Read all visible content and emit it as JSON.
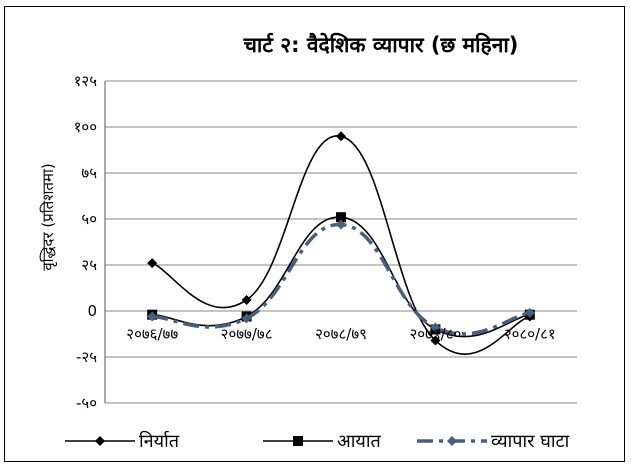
{
  "chart_data": {
    "type": "line",
    "title": "चार्ट २: वैदेशिक व्यापार (छ महिना)",
    "ylabel": "वृद्धिदर (प्रतिशतमा)",
    "xlabel": "",
    "categories": [
      "२०७६/७७",
      "२०७७/७८",
      "२०७८/७९",
      "२०७९/८०",
      "२०८०/८१"
    ],
    "y_ticks": [
      {
        "value": 125,
        "label": "१२५"
      },
      {
        "value": 100,
        "label": "१००"
      },
      {
        "value": 75,
        "label": "७५"
      },
      {
        "value": 50,
        "label": "५०"
      },
      {
        "value": 25,
        "label": "२५"
      },
      {
        "value": 0,
        "label": "0"
      },
      {
        "value": -25,
        "label": "-२५"
      },
      {
        "value": -50,
        "label": "-५०"
      }
    ],
    "ylim": [
      -50,
      125
    ],
    "grid": "horizontal",
    "legend_position": "bottom",
    "series": [
      {
        "name": "निर्यात",
        "values": [
          26,
          6,
          95,
          -16,
          -3
        ],
        "color": "#000000",
        "marker": "diamond",
        "dash": "solid"
      },
      {
        "name": "आयात",
        "values": [
          -2,
          -3,
          51,
          -10,
          -2
        ],
        "color": "#000000",
        "marker": "square",
        "dash": "solid"
      },
      {
        "name": "व्यापार घाटा",
        "values": [
          -3,
          -4,
          47,
          -9,
          -1
        ],
        "color": "#4a5f7e",
        "marker": "diamond",
        "dash": "dashdot"
      }
    ]
  }
}
